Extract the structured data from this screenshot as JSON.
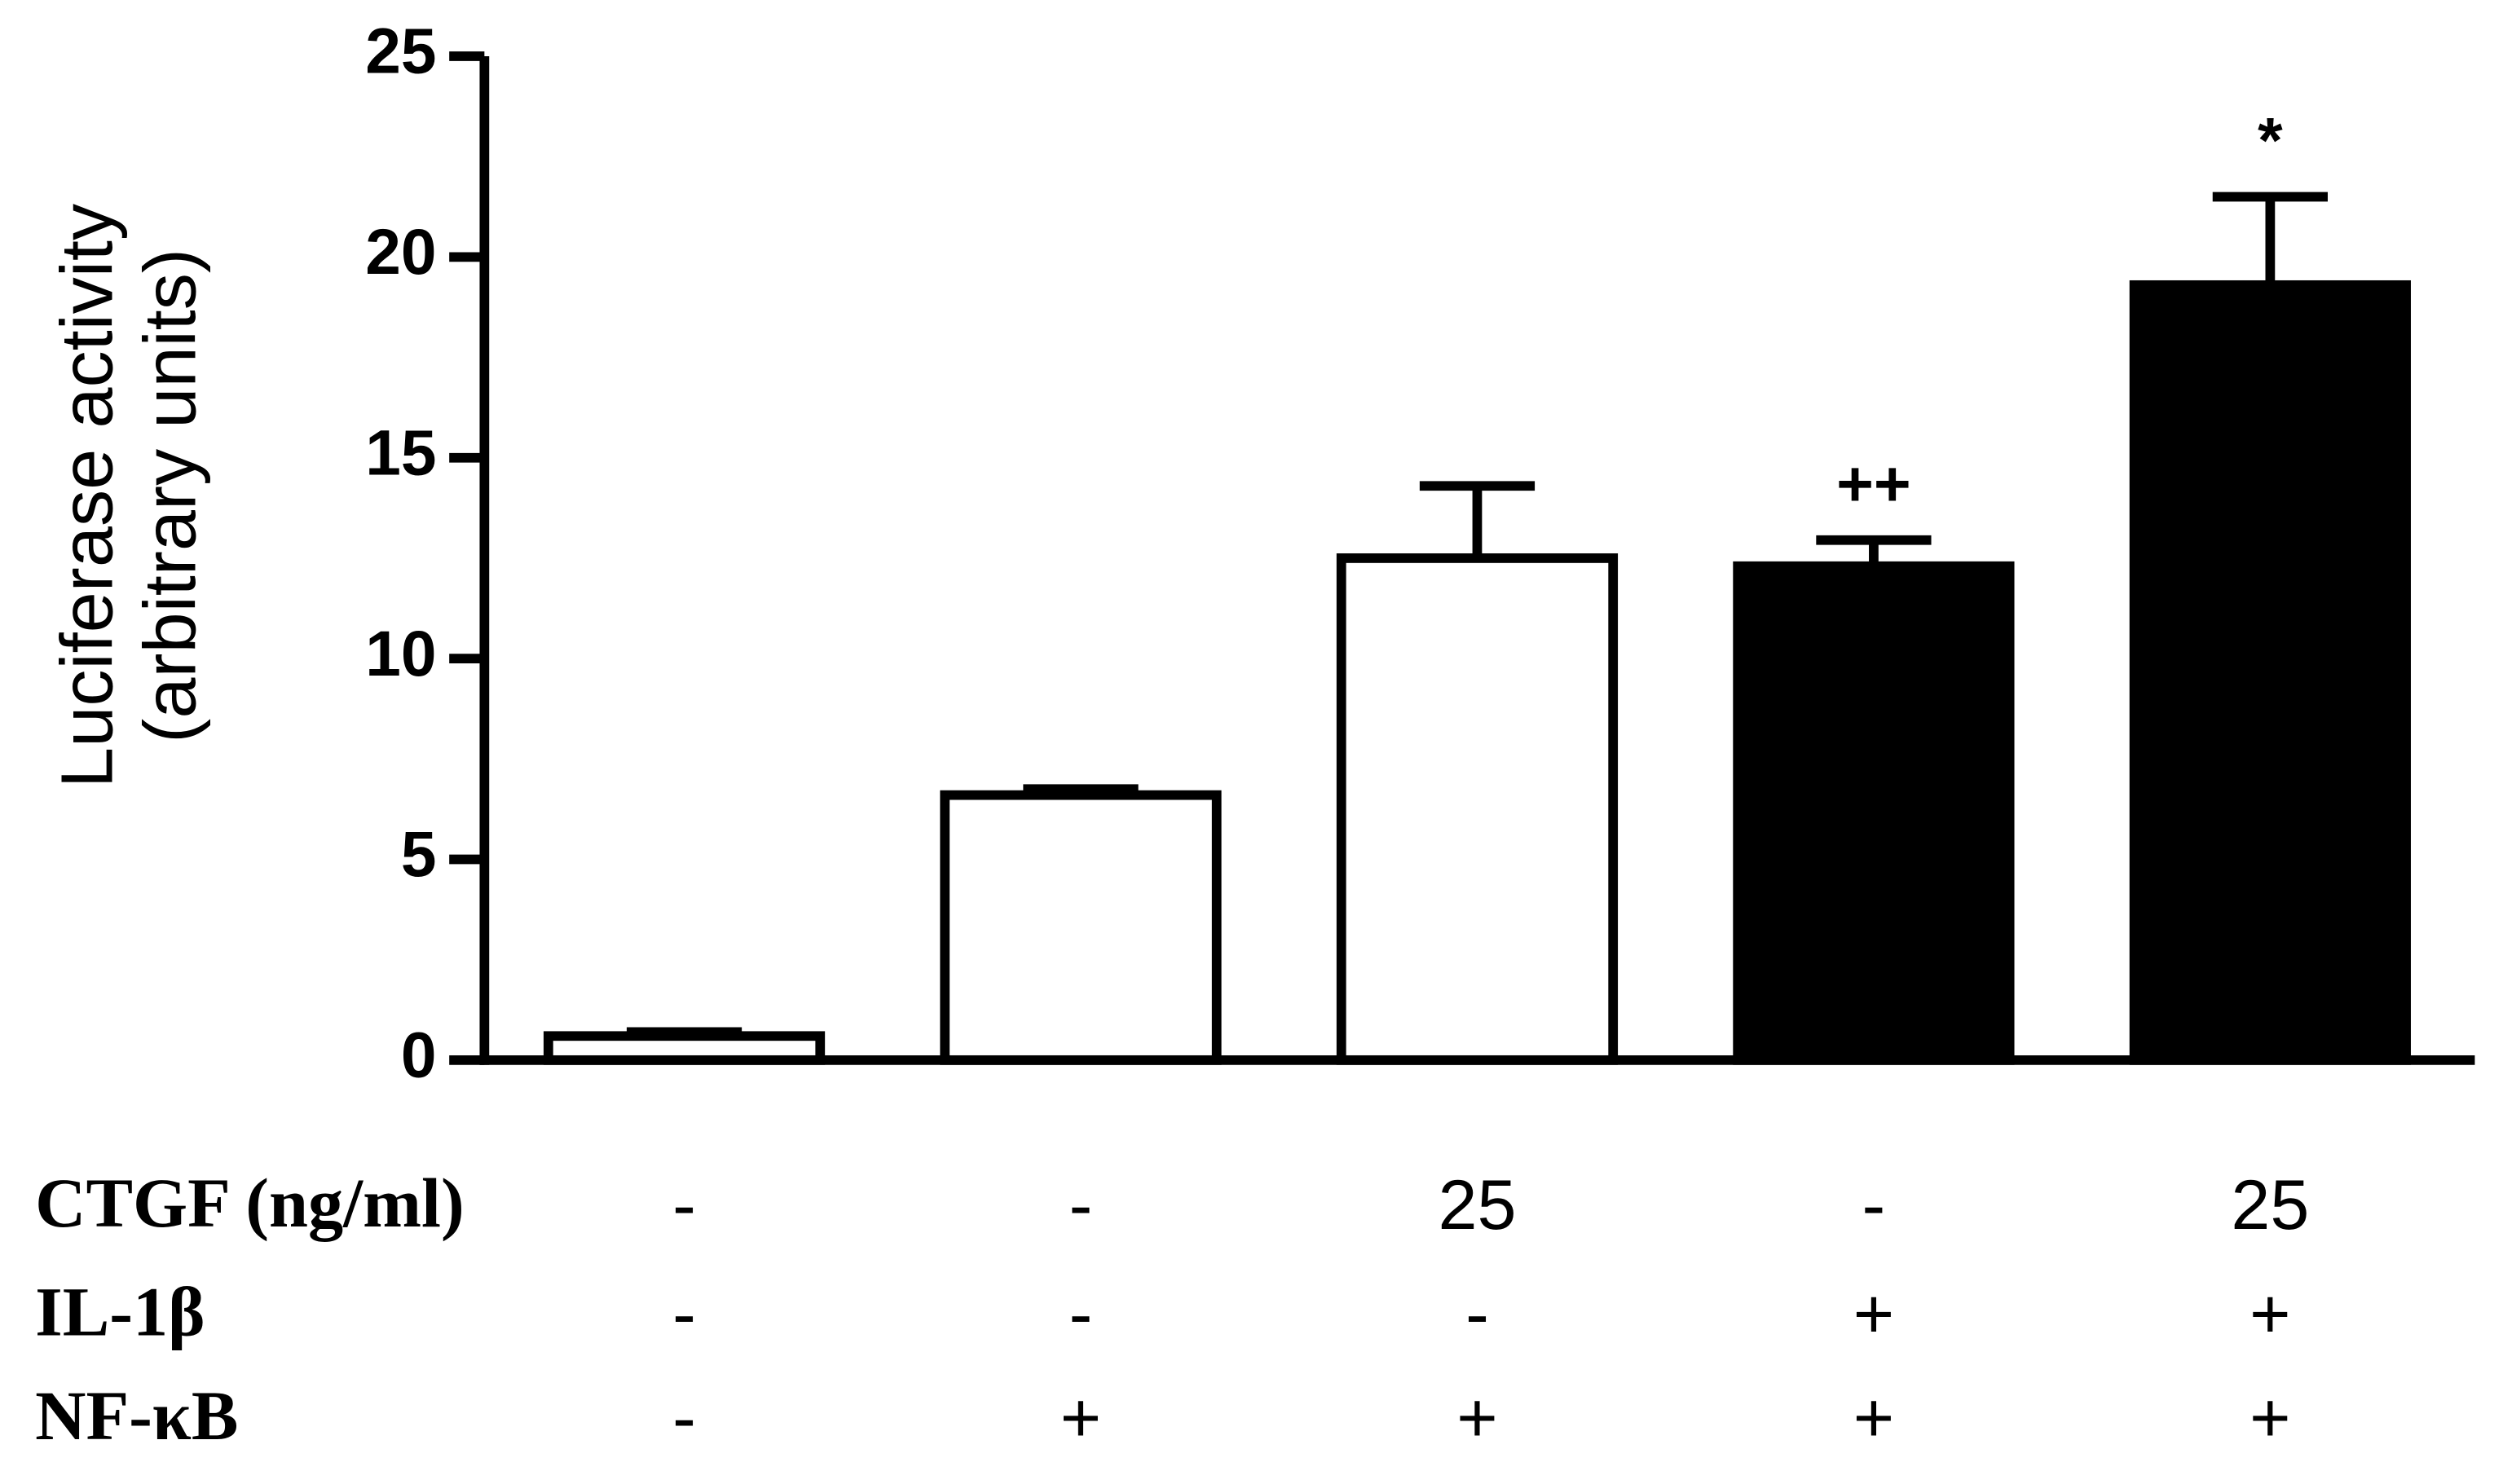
{
  "chart_data": {
    "type": "bar",
    "y_label": [
      "Luciferase activity",
      "(arbitrary units)"
    ],
    "values": [
      0.6,
      6.6,
      12.5,
      12.3,
      19.3
    ],
    "errors": [
      0.1,
      0.15,
      1.8,
      0.65,
      2.2
    ],
    "colors": [
      "#ffffff",
      "#ffffff",
      "#ffffff",
      "#000000",
      "#000000"
    ],
    "annotations": [
      null,
      null,
      null,
      "++",
      "*"
    ],
    "ylim": [
      0,
      25
    ],
    "yticks": [
      0,
      5,
      10,
      15,
      20,
      25
    ],
    "conditions": [
      {
        "label": "CTGF (ng/ml)",
        "values": [
          "-",
          "-",
          "25",
          "-",
          "25"
        ]
      },
      {
        "label": "IL-1β",
        "values": [
          "-",
          "-",
          "-",
          "+",
          "+"
        ]
      },
      {
        "label": "NF-κB",
        "values": [
          "-",
          "+",
          "+",
          "+",
          "+"
        ]
      }
    ]
  }
}
